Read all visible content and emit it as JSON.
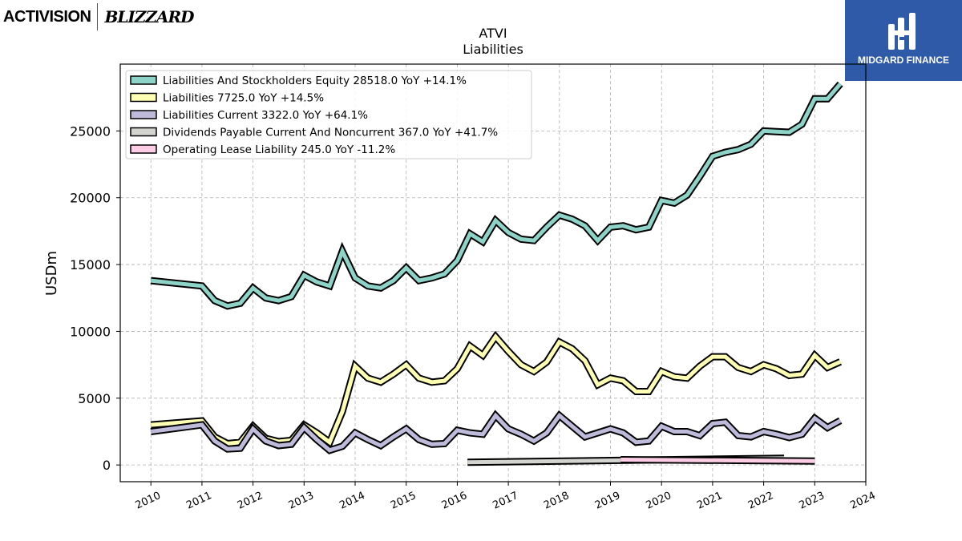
{
  "title": "ATVI",
  "subtitle": "Liabilities",
  "logos": {
    "left_primary": "ACTIVISION",
    "left_secondary": "BLIZZARD",
    "right_brand": "MIDGARD FINANCE"
  },
  "chart_data": {
    "type": "line",
    "title": "ATVI",
    "subtitle": "Liabilities",
    "xlabel": "",
    "ylabel": "USDm",
    "xlim": [
      2009.4,
      2024.0
    ],
    "ylim": [
      -1250,
      30000
    ],
    "xticks": [
      "2010",
      "2011",
      "2012",
      "2013",
      "2014",
      "2015",
      "2016",
      "2017",
      "2018",
      "2019",
      "2020",
      "2021",
      "2022",
      "2023",
      "2024"
    ],
    "yticks": [
      "0",
      "5000",
      "10000",
      "15000",
      "20000",
      "25000"
    ],
    "grid": true,
    "legend_position": "upper-left",
    "series": [
      {
        "name": "Liabilities And Stockholders Equity",
        "legend": "Liabilities And Stockholders Equity  28518.0 YoY +14.1%",
        "color": "#8dd3c7",
        "points": [
          [
            2010.0,
            13800
          ],
          [
            2011.0,
            13400
          ],
          [
            2011.25,
            12300
          ],
          [
            2011.5,
            11900
          ],
          [
            2011.75,
            12100
          ],
          [
            2012.0,
            13250
          ],
          [
            2012.25,
            12500
          ],
          [
            2012.5,
            12300
          ],
          [
            2012.75,
            12600
          ],
          [
            2013.0,
            14200
          ],
          [
            2013.25,
            13700
          ],
          [
            2013.5,
            13400
          ],
          [
            2013.75,
            16000
          ],
          [
            2014.0,
            14000
          ],
          [
            2014.25,
            13400
          ],
          [
            2014.5,
            13250
          ],
          [
            2014.75,
            13800
          ],
          [
            2015.0,
            14750
          ],
          [
            2015.25,
            13800
          ],
          [
            2015.5,
            14000
          ],
          [
            2015.75,
            14300
          ],
          [
            2016.0,
            15300
          ],
          [
            2016.25,
            17300
          ],
          [
            2016.5,
            16700
          ],
          [
            2016.75,
            18300
          ],
          [
            2017.0,
            17400
          ],
          [
            2017.25,
            16900
          ],
          [
            2017.5,
            16800
          ],
          [
            2017.75,
            17800
          ],
          [
            2018.0,
            18700
          ],
          [
            2018.25,
            18400
          ],
          [
            2018.5,
            17900
          ],
          [
            2018.75,
            16800
          ],
          [
            2019.0,
            17800
          ],
          [
            2019.25,
            17900
          ],
          [
            2019.5,
            17600
          ],
          [
            2019.75,
            17800
          ],
          [
            2020.0,
            19800
          ],
          [
            2020.25,
            19600
          ],
          [
            2020.5,
            20200
          ],
          [
            2020.75,
            21600
          ],
          [
            2021.0,
            23100
          ],
          [
            2021.25,
            23400
          ],
          [
            2021.5,
            23600
          ],
          [
            2021.75,
            24000
          ],
          [
            2022.0,
            25000
          ],
          [
            2022.25,
            24950
          ],
          [
            2022.5,
            24900
          ],
          [
            2022.75,
            25500
          ],
          [
            2023.0,
            27400
          ],
          [
            2023.25,
            27400
          ],
          [
            2023.5,
            28518
          ]
        ]
      },
      {
        "name": "Liabilities",
        "legend": "Liabilities  7725.0 YoY +14.5%",
        "color": "#ffffb3",
        "points": [
          [
            2010.0,
            3000
          ],
          [
            2011.0,
            3300
          ],
          [
            2011.25,
            2100
          ],
          [
            2011.5,
            1600
          ],
          [
            2011.75,
            1700
          ],
          [
            2012.0,
            2900
          ],
          [
            2012.25,
            2000
          ],
          [
            2012.5,
            1750
          ],
          [
            2012.75,
            1850
          ],
          [
            2013.0,
            3000
          ],
          [
            2013.25,
            2400
          ],
          [
            2013.5,
            1700
          ],
          [
            2013.75,
            4000
          ],
          [
            2014.0,
            7400
          ],
          [
            2014.25,
            6500
          ],
          [
            2014.5,
            6200
          ],
          [
            2014.75,
            6800
          ],
          [
            2015.0,
            7500
          ],
          [
            2015.25,
            6500
          ],
          [
            2015.5,
            6200
          ],
          [
            2015.75,
            6300
          ],
          [
            2016.0,
            7200
          ],
          [
            2016.25,
            8900
          ],
          [
            2016.5,
            8200
          ],
          [
            2016.75,
            9600
          ],
          [
            2017.0,
            8500
          ],
          [
            2017.25,
            7500
          ],
          [
            2017.5,
            7000
          ],
          [
            2017.75,
            7700
          ],
          [
            2018.0,
            9200
          ],
          [
            2018.25,
            8700
          ],
          [
            2018.5,
            7800
          ],
          [
            2018.75,
            6000
          ],
          [
            2019.0,
            6500
          ],
          [
            2019.25,
            6300
          ],
          [
            2019.5,
            5500
          ],
          [
            2019.75,
            5500
          ],
          [
            2020.0,
            7000
          ],
          [
            2020.25,
            6600
          ],
          [
            2020.5,
            6500
          ],
          [
            2020.75,
            7400
          ],
          [
            2021.0,
            8100
          ],
          [
            2021.25,
            8100
          ],
          [
            2021.5,
            7300
          ],
          [
            2021.75,
            7000
          ],
          [
            2022.0,
            7500
          ],
          [
            2022.25,
            7200
          ],
          [
            2022.5,
            6700
          ],
          [
            2022.75,
            6800
          ],
          [
            2023.0,
            8200
          ],
          [
            2023.25,
            7300
          ],
          [
            2023.5,
            7725
          ]
        ]
      },
      {
        "name": "Liabilities Current",
        "legend": "Liabilities Current  3322.0 YoY +64.1%",
        "color": "#bebada",
        "points": [
          [
            2010.0,
            2500
          ],
          [
            2011.0,
            3000
          ],
          [
            2011.25,
            1800
          ],
          [
            2011.5,
            1200
          ],
          [
            2011.75,
            1250
          ],
          [
            2012.0,
            2700
          ],
          [
            2012.25,
            1800
          ],
          [
            2012.5,
            1450
          ],
          [
            2012.75,
            1550
          ],
          [
            2013.0,
            2800
          ],
          [
            2013.25,
            1900
          ],
          [
            2013.5,
            1100
          ],
          [
            2013.75,
            1400
          ],
          [
            2014.0,
            2400
          ],
          [
            2014.25,
            1900
          ],
          [
            2014.5,
            1450
          ],
          [
            2014.75,
            2100
          ],
          [
            2015.0,
            2700
          ],
          [
            2015.25,
            1900
          ],
          [
            2015.5,
            1550
          ],
          [
            2015.75,
            1600
          ],
          [
            2016.0,
            2600
          ],
          [
            2016.25,
            2400
          ],
          [
            2016.5,
            2300
          ],
          [
            2016.75,
            3700
          ],
          [
            2017.0,
            2700
          ],
          [
            2017.25,
            2300
          ],
          [
            2017.5,
            1800
          ],
          [
            2017.75,
            2400
          ],
          [
            2018.0,
            3700
          ],
          [
            2018.25,
            2900
          ],
          [
            2018.5,
            2100
          ],
          [
            2018.75,
            2400
          ],
          [
            2019.0,
            2700
          ],
          [
            2019.25,
            2400
          ],
          [
            2019.5,
            1700
          ],
          [
            2019.75,
            1800
          ],
          [
            2020.0,
            2900
          ],
          [
            2020.25,
            2500
          ],
          [
            2020.5,
            2500
          ],
          [
            2020.75,
            2200
          ],
          [
            2021.0,
            3100
          ],
          [
            2021.25,
            3200
          ],
          [
            2021.5,
            2200
          ],
          [
            2021.75,
            2100
          ],
          [
            2022.0,
            2500
          ],
          [
            2022.25,
            2300
          ],
          [
            2022.5,
            2050
          ],
          [
            2022.75,
            2300
          ],
          [
            2023.0,
            3500
          ],
          [
            2023.25,
            2800
          ],
          [
            2023.5,
            3322
          ]
        ]
      },
      {
        "name": "Dividends Payable Current And Noncurrent",
        "legend": "Dividends Payable Current And Noncurrent  367.0 YoY +41.7%",
        "color": "#d3d3cf",
        "points": [
          [
            2016.2,
            200
          ],
          [
            2022.4,
            500
          ]
        ]
      },
      {
        "name": "Operating Lease Liability",
        "legend": "Operating Lease Liability  245.0 YoY -11.2%",
        "color": "#fccde5",
        "points": [
          [
            2019.2,
            400
          ],
          [
            2023.0,
            300
          ]
        ]
      }
    ]
  }
}
